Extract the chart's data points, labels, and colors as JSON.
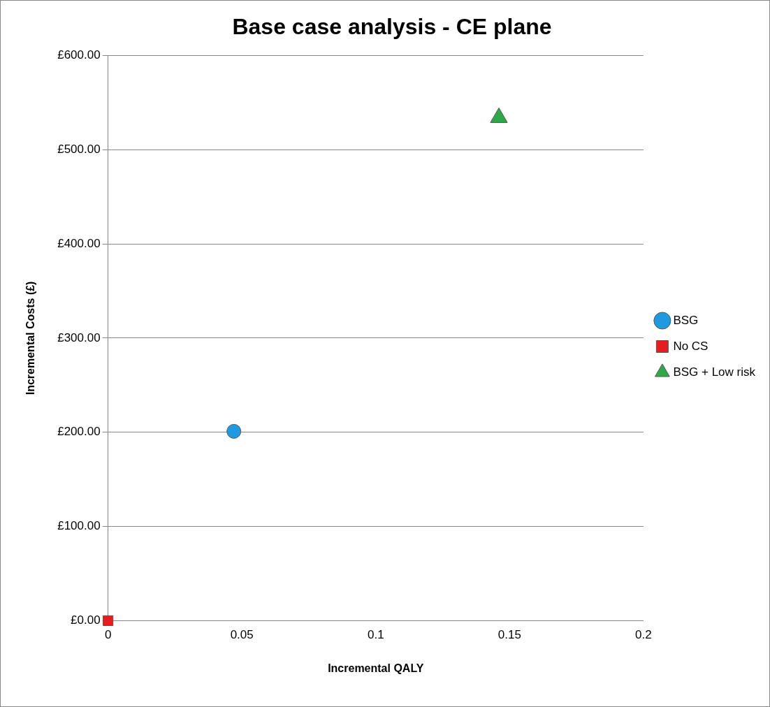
{
  "chart_data": {
    "type": "scatter",
    "title": "Base case analysis - CE plane",
    "xlabel": "Incremental QALY",
    "ylabel": "Incremental Costs (£)",
    "series": [
      {
        "name": "BSG",
        "color": "#1e9be0",
        "marker": "circle",
        "x": [
          0.047
        ],
        "values": [
          201
        ]
      },
      {
        "name": "No CS",
        "color": "#e41e1e",
        "marker": "square",
        "x": [
          0
        ],
        "values": [
          0
        ]
      },
      {
        "name": "BSG + Low risk",
        "color": "#2fa84a",
        "marker": "triangle",
        "x": [
          0.146
        ],
        "values": [
          534
        ]
      }
    ],
    "xlim": [
      0,
      0.2
    ],
    "xticks": [
      0,
      0.05,
      0.1,
      0.15,
      0.2
    ],
    "ylim": [
      0,
      600
    ],
    "yticks": [
      {
        "value": 0,
        "label": "£0.00"
      },
      {
        "value": 100,
        "label": "£100.00"
      },
      {
        "value": 200,
        "label": "£200.00"
      },
      {
        "value": 300,
        "label": "£300.00"
      },
      {
        "value": 400,
        "label": "£400.00"
      },
      {
        "value": 500,
        "label": "£500.00"
      },
      {
        "value": 600,
        "label": "£600.00"
      }
    ],
    "grid": "y",
    "legend": "right"
  }
}
